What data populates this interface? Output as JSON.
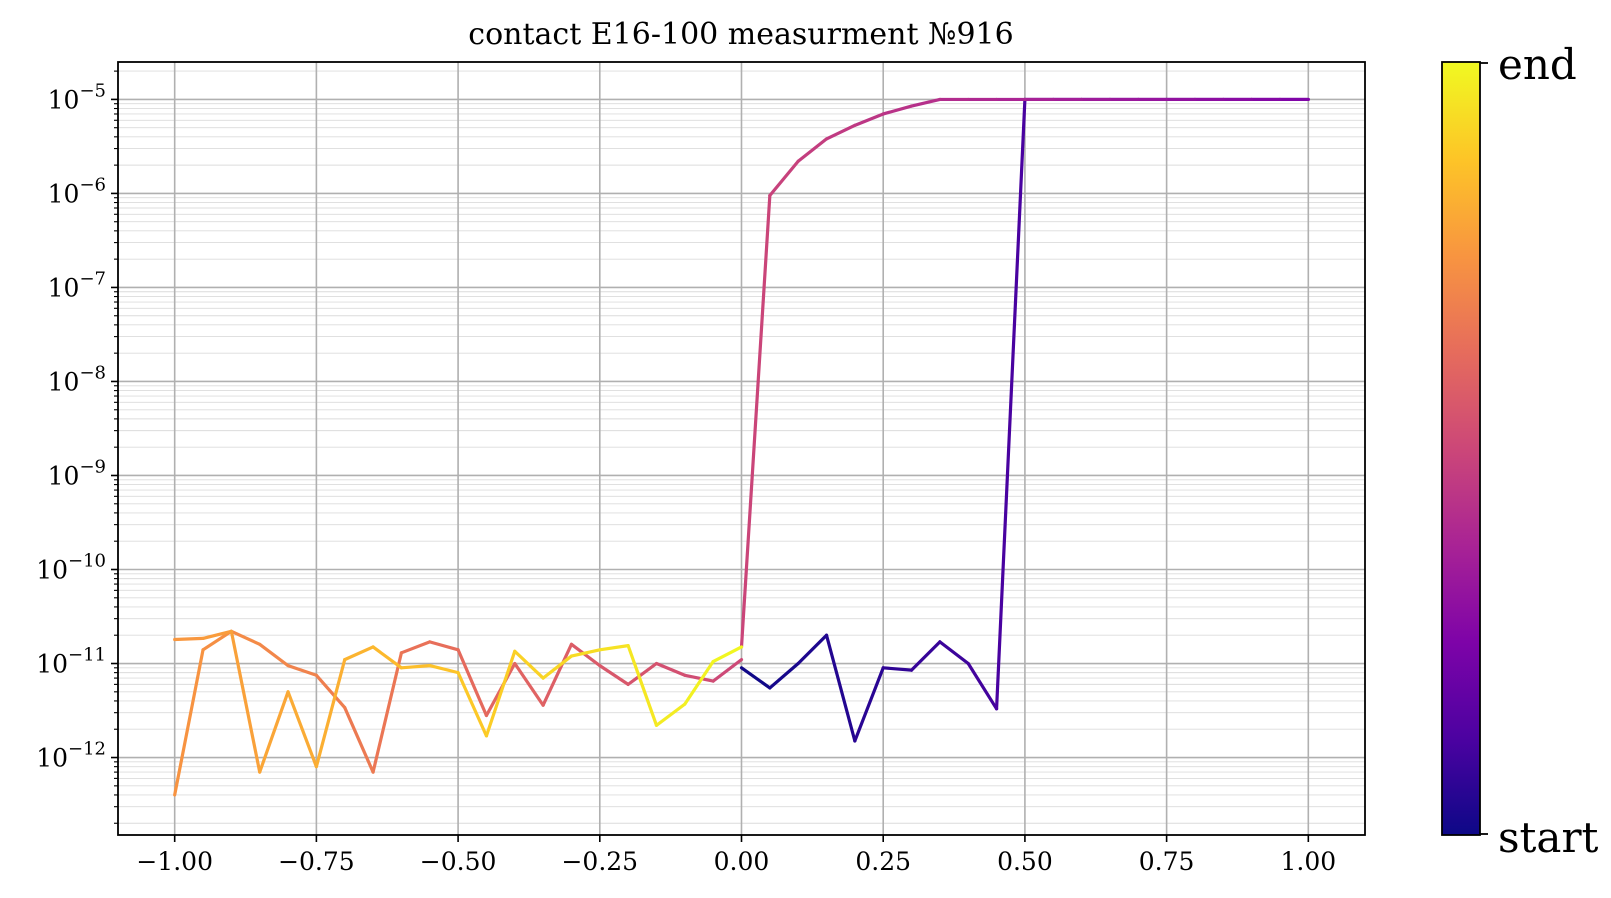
{
  "chart_data": {
    "type": "line",
    "title": "contact E16-100 measurment №916",
    "xlabel": "",
    "ylabel": "",
    "y_scale": "log",
    "xlim": [
      -1.1,
      1.1
    ],
    "ylim": [
      1.5e-13,
      2.5e-05
    ],
    "x_ticks": [
      "−1.00",
      "−0.75",
      "−0.50",
      "−0.25",
      "0.00",
      "0.25",
      "0.50",
      "0.75",
      "1.00"
    ],
    "x_tick_values": [
      -1.0,
      -0.75,
      -0.5,
      -0.25,
      0.0,
      0.25,
      0.5,
      0.75,
      1.0
    ],
    "y_ticks": [
      {
        "base": "10",
        "exp": "−5",
        "value": 1e-05
      },
      {
        "base": "10",
        "exp": "−6",
        "value": 1e-06
      },
      {
        "base": "10",
        "exp": "−7",
        "value": 1e-07
      },
      {
        "base": "10",
        "exp": "−8",
        "value": 1e-08
      },
      {
        "base": "10",
        "exp": "−9",
        "value": 1e-09
      },
      {
        "base": "10",
        "exp": "−10",
        "value": 1e-10
      },
      {
        "base": "10",
        "exp": "−11",
        "value": 1e-11
      },
      {
        "base": "10",
        "exp": "−12",
        "value": 1e-12
      }
    ],
    "grid": true,
    "colormap": "plasma",
    "colorbar": {
      "top_label": "end",
      "bottom_label": "start"
    },
    "series": [
      {
        "segment": 1,
        "x": [
          0.0,
          0.05,
          0.1,
          0.15,
          0.2,
          0.25,
          0.3,
          0.35,
          0.4,
          0.45,
          0.5
        ],
        "y": [
          9e-12,
          5.5e-12,
          1e-11,
          2e-11,
          1.5e-12,
          9e-12,
          8.5e-12,
          1.7e-11,
          1e-11,
          3.3e-12,
          1e-05
        ]
      },
      {
        "segment": 2,
        "x": [
          0.5,
          0.55,
          0.6,
          0.65,
          0.7,
          0.75,
          0.8,
          0.85,
          0.9,
          0.95,
          1.0
        ],
        "y": [
          1e-05,
          1e-05,
          1e-05,
          1e-05,
          1e-05,
          1e-05,
          1e-05,
          1e-05,
          1e-05,
          1e-05,
          1e-05
        ]
      },
      {
        "segment": 3,
        "x": [
          1.0,
          0.95,
          0.9,
          0.85,
          0.8,
          0.75,
          0.7,
          0.65,
          0.6,
          0.55,
          0.5,
          0.45,
          0.4,
          0.35,
          0.3,
          0.25,
          0.2,
          0.15,
          0.1,
          0.05,
          0.0
        ],
        "y": [
          1e-05,
          1e-05,
          1e-05,
          1e-05,
          1e-05,
          1e-05,
          1e-05,
          1e-05,
          1e-05,
          1e-05,
          1e-05,
          1e-05,
          1e-05,
          1e-05,
          8.5e-06,
          7e-06,
          5.3e-06,
          3.8e-06,
          2.2e-06,
          9.5e-07,
          1.5e-11
        ]
      },
      {
        "segment": 4,
        "x": [
          0.0,
          -0.05,
          -0.1,
          -0.15,
          -0.2,
          -0.25,
          -0.3,
          -0.35,
          -0.4,
          -0.45,
          -0.5,
          -0.55,
          -0.6,
          -0.65,
          -0.7,
          -0.75,
          -0.8,
          -0.85,
          -0.9,
          -0.95,
          -1.0
        ],
        "y": [
          1.1e-11,
          6.5e-12,
          7.5e-12,
          1e-11,
          6e-12,
          9.5e-12,
          1.6e-11,
          3.6e-12,
          1e-11,
          2.8e-12,
          1.4e-11,
          1.7e-11,
          1.3e-11,
          7e-13,
          3.4e-12,
          7.5e-12,
          9.5e-12,
          1.6e-11,
          2.2e-11,
          1.4e-11,
          4e-13
        ]
      },
      {
        "segment": 5,
        "x": [
          -1.0,
          -0.95,
          -0.9,
          -0.85,
          -0.8,
          -0.75,
          -0.7,
          -0.65,
          -0.6,
          -0.55,
          -0.5,
          -0.45,
          -0.4,
          -0.35,
          -0.3,
          -0.25,
          -0.2,
          -0.15,
          -0.1,
          -0.05,
          0.0
        ],
        "y": [
          1.8e-11,
          1.85e-11,
          2.2e-11,
          7e-13,
          5e-12,
          8e-13,
          1.1e-11,
          1.5e-11,
          9e-12,
          9.5e-12,
          8e-12,
          1.7e-12,
          1.35e-11,
          7e-12,
          1.2e-11,
          1.4e-11,
          1.55e-11,
          2.2e-12,
          3.7e-12,
          1.05e-11,
          1.5e-11
        ]
      }
    ]
  }
}
